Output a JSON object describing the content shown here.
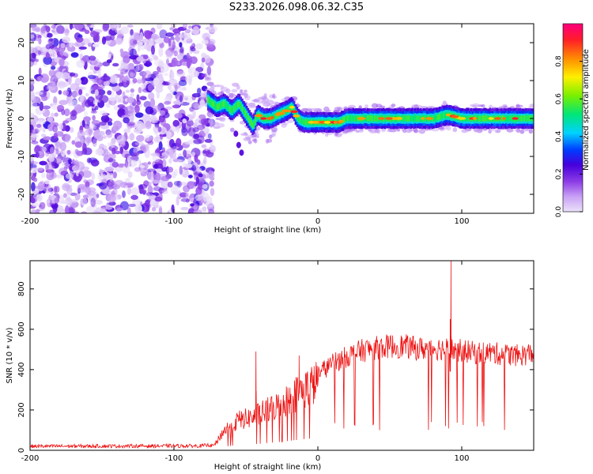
{
  "figure_title": "S233.2026.098.06.32.C35",
  "chart_data": [
    {
      "type": "heatmap",
      "title": "S233.2026.098.06.32.C35",
      "xlabel": "Height of straight line (km)",
      "ylabel": "Frequency (Hz)",
      "xlim": [
        -200,
        150
      ],
      "ylim": [
        -25,
        25
      ],
      "xticks": [
        -200,
        -100,
        0,
        100
      ],
      "yticks": [
        -20,
        -10,
        0,
        10,
        20
      ],
      "colorbar": {
        "label": "Normalized spectral amplitude",
        "range": [
          0,
          1
        ],
        "ticks": [
          0.0,
          0.2,
          0.4,
          0.6,
          0.8
        ],
        "tick_labels": [
          "0.0",
          "0.2",
          "0.4",
          "0.6",
          "0.8"
        ]
      },
      "noise_region_x": [
        -200,
        -77
      ],
      "ridge": {
        "x": [
          -77,
          -70,
          -65,
          -60,
          -55,
          -50,
          -45,
          -42,
          -38,
          -33,
          -28,
          -22,
          -18,
          -14,
          -10,
          -5,
          0,
          5,
          10,
          15,
          20,
          30,
          40,
          50,
          60,
          70,
          80,
          90,
          100,
          110,
          120,
          130,
          140,
          150
        ],
        "freq_hz": [
          5,
          3,
          4,
          2,
          4,
          1,
          -2,
          1,
          0,
          0,
          1,
          2,
          3,
          0,
          -1,
          -1,
          -1,
          -1,
          -1,
          -1,
          0,
          0,
          0,
          0,
          0,
          0,
          0,
          1,
          0,
          0,
          0,
          0,
          0,
          0
        ],
        "amplitude": [
          0.35,
          0.45,
          0.5,
          0.5,
          0.45,
          0.4,
          0.35,
          0.55,
          0.6,
          0.65,
          0.55,
          0.55,
          0.6,
          0.5,
          0.5,
          0.5,
          0.55,
          0.55,
          0.5,
          0.5,
          0.6,
          0.6,
          0.55,
          0.55,
          0.55,
          0.6,
          0.6,
          0.6,
          0.55,
          0.55,
          0.55,
          0.55,
          0.55,
          0.55
        ]
      },
      "secondary_feature": {
        "x": [
          -57,
          -55,
          -53
        ],
        "freq_hz": [
          -4,
          -7,
          -9
        ]
      }
    },
    {
      "type": "line",
      "xlabel": "Height of straight line (km)",
      "ylabel": "SNR (10 * v/v)",
      "xlim": [
        -200,
        150
      ],
      "ylim": [
        0,
        940
      ],
      "xticks": [
        -200,
        -100,
        0,
        100
      ],
      "yticks": [
        0,
        200,
        400,
        600,
        800
      ],
      "color": "#ee1111",
      "envelope": {
        "x": [
          -200,
          -80,
          -72,
          -65,
          -55,
          -45,
          -35,
          -25,
          -15,
          -5,
          0,
          10,
          20,
          30,
          40,
          50,
          60,
          70,
          80,
          90,
          100,
          110,
          120,
          130,
          140,
          150
        ],
        "y": [
          20,
          22,
          30,
          120,
          180,
          200,
          240,
          280,
          340,
          390,
          410,
          460,
          500,
          530,
          545,
          555,
          555,
          540,
          545,
          540,
          530,
          520,
          520,
          510,
          505,
          520
        ]
      },
      "spikes": [
        {
          "x": -43,
          "y": 490
        },
        {
          "x": -13,
          "y": 470
        },
        {
          "x": 92.5,
          "y": 940
        },
        {
          "x": 92,
          "y": 650
        }
      ]
    }
  ]
}
